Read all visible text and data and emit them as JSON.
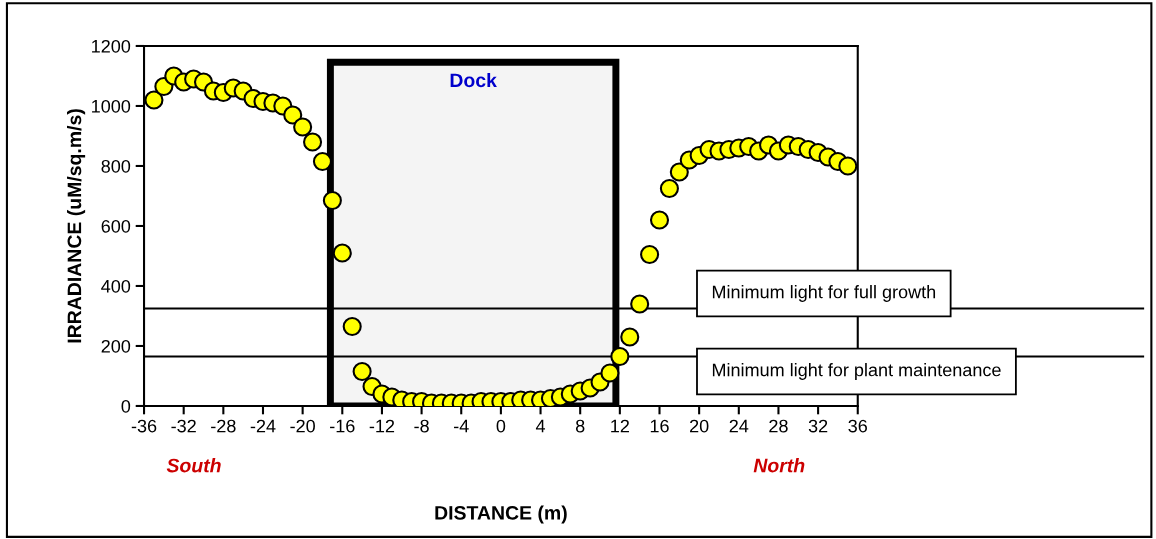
{
  "chart_data": {
    "type": "scatter",
    "xlabel": "DISTANCE (m)",
    "ylabel": "IRRADIANCE (uM/sq.m/s)",
    "x": [
      -35,
      -34,
      -33,
      -32,
      -31,
      -30,
      -29,
      -28,
      -27,
      -26,
      -25,
      -24,
      -23,
      -22,
      -21,
      -20,
      -19,
      -18,
      -17,
      -16,
      -15,
      -14,
      -13,
      -12,
      -11,
      -10,
      -9,
      -8,
      -7,
      -6,
      -5,
      -4,
      -3,
      -2,
      -1,
      0,
      1,
      2,
      3,
      4,
      5,
      6,
      7,
      8,
      9,
      10,
      11,
      12,
      13,
      14,
      15,
      16,
      17,
      18,
      19,
      20,
      21,
      22,
      23,
      24,
      25,
      26,
      27,
      28,
      29,
      30,
      31,
      32,
      33,
      34,
      35
    ],
    "series": [
      {
        "color": "#ffff00",
        "values": [
          1020,
          1065,
          1100,
          1080,
          1090,
          1080,
          1050,
          1045,
          1060,
          1050,
          1025,
          1015,
          1010,
          1000,
          970,
          930,
          880,
          815,
          685,
          510,
          265,
          115,
          65,
          40,
          30,
          20,
          15,
          15,
          10,
          10,
          10,
          10,
          10,
          15,
          15,
          15,
          15,
          20,
          20,
          20,
          25,
          30,
          40,
          50,
          60,
          80,
          110,
          165,
          230,
          340,
          505,
          620,
          725,
          780,
          820,
          835,
          855,
          850,
          855,
          860,
          865,
          850,
          870,
          850,
          870,
          865,
          855,
          845,
          830,
          815,
          800
        ]
      }
    ],
    "marker": "circle",
    "xlim": [
      -36,
      36
    ],
    "ylim": [
      0,
      1200
    ],
    "xticks": [
      -36,
      -32,
      -28,
      -24,
      -20,
      -16,
      -12,
      -8,
      -4,
      0,
      4,
      8,
      12,
      16,
      20,
      24,
      28,
      32,
      36
    ],
    "yticks": [
      0,
      200,
      400,
      600,
      800,
      1000,
      1200
    ],
    "grid": false,
    "legend": false,
    "ref_lines": [
      {
        "axis": "y",
        "value": 325,
        "label": "Minimum light for full growth",
        "color": "#000000"
      },
      {
        "axis": "y",
        "value": 165,
        "label": "Minimum light for plant maintenance",
        "color": "#000000"
      }
    ],
    "bands": [
      {
        "axis": "x",
        "from": -17.2,
        "to": 11.6,
        "label": "Dock",
        "color": "#000000"
      }
    ],
    "annotations": [
      "South",
      "North"
    ]
  }
}
